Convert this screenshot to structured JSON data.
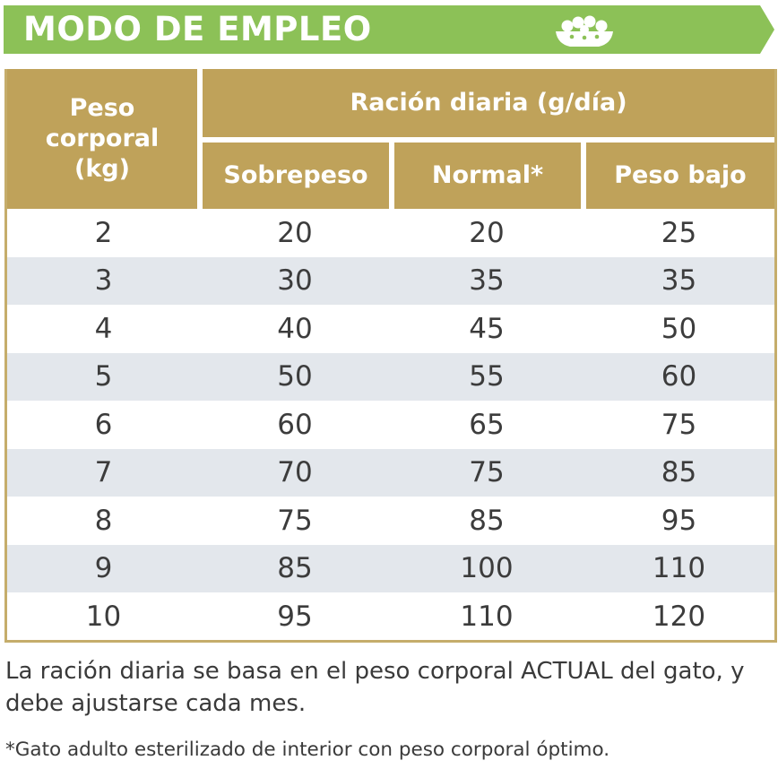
{
  "header": {
    "title": "MODO DE EMPLEO",
    "icon": "food-bowl-icon",
    "color": "#8cc157"
  },
  "table": {
    "header_color": "#bfa25a",
    "stripe_color": "#e3e7ec",
    "col_peso": [
      "Peso",
      "corporal",
      "(kg)"
    ],
    "group_label": "Ración diaria (g/día)",
    "columns": [
      "Sobrepeso",
      "Normal*",
      "Peso bajo"
    ],
    "rows": [
      [
        "2",
        "20",
        "20",
        "25"
      ],
      [
        "3",
        "30",
        "35",
        "35"
      ],
      [
        "4",
        "40",
        "45",
        "50"
      ],
      [
        "5",
        "50",
        "55",
        "60"
      ],
      [
        "6",
        "60",
        "65",
        "75"
      ],
      [
        "7",
        "70",
        "75",
        "85"
      ],
      [
        "8",
        "75",
        "85",
        "95"
      ],
      [
        "9",
        "85",
        "100",
        "110"
      ],
      [
        "10",
        "95",
        "110",
        "120"
      ]
    ]
  },
  "notes": {
    "main": "La ración diaria se basa en el peso corporal ACTUAL del gato, y debe ajustarse cada mes.",
    "footnote": "*Gato adulto esterilizado de interior con peso corporal óptimo."
  }
}
